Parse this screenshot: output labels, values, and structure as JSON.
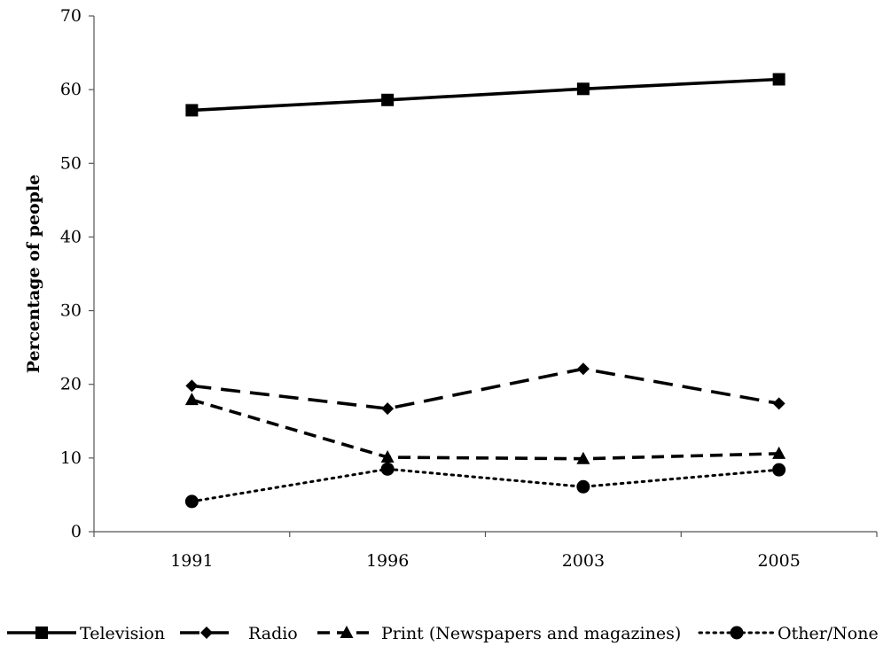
{
  "chart_data": {
    "type": "line",
    "title": "",
    "xlabel": "",
    "ylabel": "Percentage of people",
    "categories": [
      "1991",
      "1996",
      "2003",
      "2005"
    ],
    "ylim": [
      0,
      70
    ],
    "yticks": [
      0,
      10,
      20,
      30,
      40,
      50,
      60,
      70
    ],
    "grid": false,
    "legend_position": "bottom",
    "series": [
      {
        "name": "Television",
        "values": [
          57.2,
          58.6,
          60.1,
          61.4
        ],
        "line_style": "solid",
        "marker": "square",
        "color": "#000000"
      },
      {
        "name": "Radio",
        "values": [
          19.8,
          16.7,
          22.1,
          17.4
        ],
        "line_style": "long-dash",
        "marker": "diamond",
        "color": "#000000"
      },
      {
        "name": "Print (Newspapers and magazines)",
        "values": [
          17.9,
          10.1,
          9.9,
          10.6
        ],
        "line_style": "dash",
        "marker": "triangle",
        "color": "#000000"
      },
      {
        "name": "Other/None",
        "values": [
          4.1,
          8.5,
          6.1,
          8.4
        ],
        "line_style": "dotted",
        "marker": "circle",
        "color": "#000000"
      }
    ]
  }
}
